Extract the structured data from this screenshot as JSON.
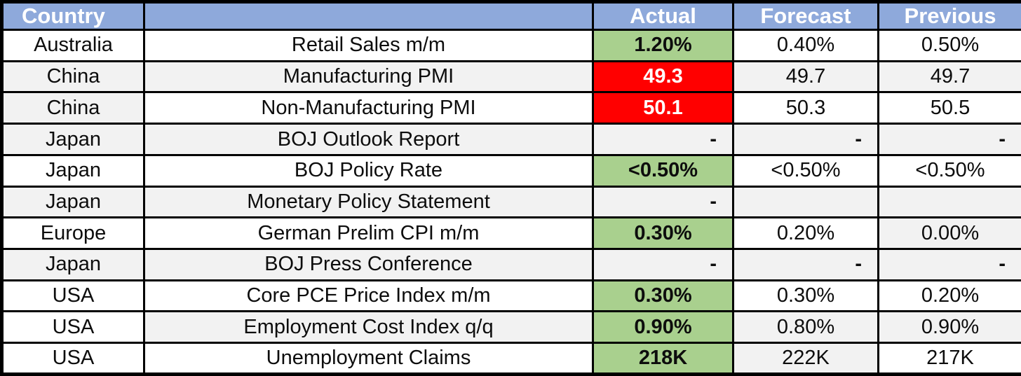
{
  "palette": {
    "header_bg": "#8EA9DB",
    "header_text": "#FFFFFF",
    "beat_bg": "#A9D08E",
    "miss_bg": "#FF0000",
    "miss_text": "#FFFFFF",
    "stripe_bg": "#F2F2F2",
    "white_bg": "#FFFFFF",
    "border": "#000000"
  },
  "header": {
    "columns": [
      {
        "id": "country",
        "label": "Country",
        "align": "left"
      },
      {
        "id": "event",
        "label": "",
        "align": "center"
      },
      {
        "id": "actual",
        "label": "Actual",
        "align": "center"
      },
      {
        "id": "forecast",
        "label": "Forecast",
        "align": "center"
      },
      {
        "id": "previous",
        "label": "Previous",
        "align": "center"
      }
    ]
  },
  "rows": [
    {
      "cells": [
        {
          "text": "Australia",
          "bg": "white"
        },
        {
          "text": "Retail Sales m/m",
          "bg": "white"
        },
        {
          "text": "1.20%",
          "bg": "green",
          "bold": true
        },
        {
          "text": "0.40%",
          "bg": "white"
        },
        {
          "text": "0.50%",
          "bg": "white"
        }
      ]
    },
    {
      "cells": [
        {
          "text": "China",
          "bg": "stripe"
        },
        {
          "text": "Manufacturing PMI",
          "bg": "stripe"
        },
        {
          "text": "49.3",
          "bg": "red",
          "bold": true
        },
        {
          "text": "49.7",
          "bg": "stripe"
        },
        {
          "text": "49.7",
          "bg": "stripe"
        }
      ]
    },
    {
      "cells": [
        {
          "text": "China",
          "bg": "stripe"
        },
        {
          "text": "Non-Manufacturing PMI",
          "bg": "white"
        },
        {
          "text": "50.1",
          "bg": "red",
          "bold": true
        },
        {
          "text": "50.3",
          "bg": "white"
        },
        {
          "text": "50.5",
          "bg": "white"
        }
      ]
    },
    {
      "cells": [
        {
          "text": "Japan",
          "bg": "stripe"
        },
        {
          "text": "BOJ Outlook Report",
          "bg": "stripe"
        },
        {
          "text": "-",
          "bg": "stripe",
          "bold": true,
          "align": "right"
        },
        {
          "text": "-",
          "bg": "stripe",
          "bold": true,
          "align": "right"
        },
        {
          "text": "-",
          "bg": "stripe",
          "bold": true,
          "align": "right"
        }
      ]
    },
    {
      "cells": [
        {
          "text": "Japan",
          "bg": "white"
        },
        {
          "text": "BOJ Policy Rate",
          "bg": "white"
        },
        {
          "text": "<0.50%",
          "bg": "green",
          "bold": true
        },
        {
          "text": "<0.50%",
          "bg": "white"
        },
        {
          "text": "<0.50%",
          "bg": "white"
        }
      ]
    },
    {
      "cells": [
        {
          "text": "Japan",
          "bg": "stripe"
        },
        {
          "text": "Monetary Policy Statement",
          "bg": "stripe"
        },
        {
          "text": "-",
          "bg": "stripe",
          "bold": true,
          "align": "right"
        },
        {
          "text": "",
          "bg": "stripe"
        },
        {
          "text": "",
          "bg": "stripe"
        }
      ]
    },
    {
      "cells": [
        {
          "text": "Europe",
          "bg": "white"
        },
        {
          "text": "German Prelim CPI m/m",
          "bg": "white"
        },
        {
          "text": "0.30%",
          "bg": "green",
          "bold": true
        },
        {
          "text": "0.20%",
          "bg": "white"
        },
        {
          "text": "0.00%",
          "bg": "stripe"
        }
      ]
    },
    {
      "cells": [
        {
          "text": "Japan",
          "bg": "stripe"
        },
        {
          "text": "BOJ Press Conference",
          "bg": "stripe"
        },
        {
          "text": "-",
          "bg": "stripe",
          "bold": true,
          "align": "right"
        },
        {
          "text": "-",
          "bg": "stripe",
          "bold": true,
          "align": "right"
        },
        {
          "text": "-",
          "bg": "stripe",
          "bold": true,
          "align": "right"
        }
      ]
    },
    {
      "cells": [
        {
          "text": "USA",
          "bg": "white"
        },
        {
          "text": "Core PCE Price Index m/m",
          "bg": "white"
        },
        {
          "text": "0.30%",
          "bg": "green",
          "bold": true
        },
        {
          "text": "0.30%",
          "bg": "white"
        },
        {
          "text": "0.20%",
          "bg": "white"
        }
      ]
    },
    {
      "cells": [
        {
          "text": "USA",
          "bg": "white"
        },
        {
          "text": "Employment Cost Index q/q",
          "bg": "stripe"
        },
        {
          "text": "0.90%",
          "bg": "green",
          "bold": true
        },
        {
          "text": "0.80%",
          "bg": "stripe"
        },
        {
          "text": "0.90%",
          "bg": "stripe"
        }
      ]
    },
    {
      "cells": [
        {
          "text": "USA",
          "bg": "white"
        },
        {
          "text": "Unemployment Claims",
          "bg": "white"
        },
        {
          "text": "218K",
          "bg": "green",
          "bold": true
        },
        {
          "text": "222K",
          "bg": "stripe"
        },
        {
          "text": "217K",
          "bg": "white"
        }
      ]
    }
  ]
}
